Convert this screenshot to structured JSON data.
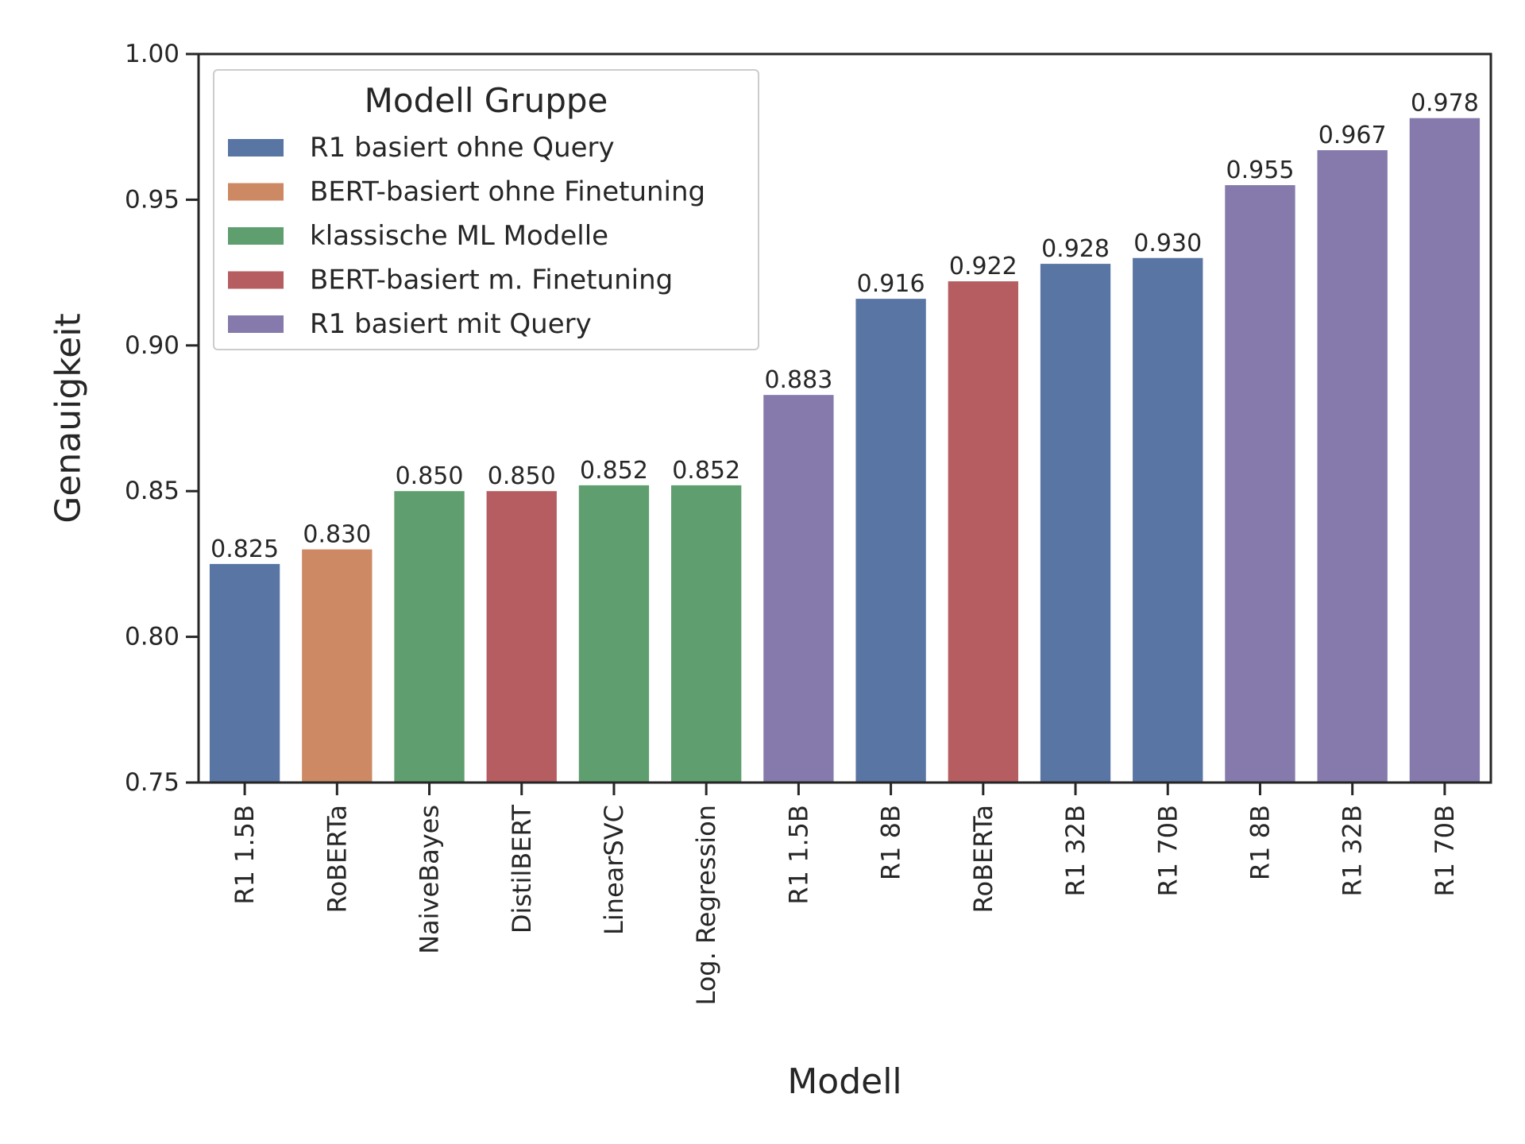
{
  "chart_data": {
    "type": "bar",
    "xlabel": "Modell",
    "ylabel": "Genauigkeit",
    "ylim": [
      0.75,
      1.0
    ],
    "yticks": [
      "0.75",
      "0.80",
      "0.85",
      "0.90",
      "0.95",
      "1.00"
    ],
    "grid": false,
    "legend": {
      "title": "Modell Gruppe",
      "placement": "upper-left",
      "entries": [
        {
          "name": "R1 basiert ohne Query",
          "color": "#5975a4"
        },
        {
          "name": "BERT-basiert ohne Finetuning",
          "color": "#cc8963"
        },
        {
          "name": "klassische ML Modelle",
          "color": "#5f9e6e"
        },
        {
          "name": "BERT-basiert m. Finetuning",
          "color": "#b55d60"
        },
        {
          "name": "R1 basiert mit Query",
          "color": "#857aab"
        }
      ]
    },
    "categories": [
      "R1 1.5B",
      "RoBERTa",
      "NaiveBayes",
      "DistilBERT",
      "LinearSVC",
      "Log. Regression",
      "R1 1.5B",
      "R1 8B",
      "RoBERTa",
      "R1 32B",
      "R1 70B",
      "R1 8B",
      "R1 32B",
      "R1 70B"
    ],
    "values": [
      0.825,
      0.83,
      0.85,
      0.85,
      0.852,
      0.852,
      0.883,
      0.916,
      0.922,
      0.928,
      0.93,
      0.955,
      0.967,
      0.978
    ],
    "value_labels": [
      "0.825",
      "0.830",
      "0.850",
      "0.850",
      "0.852",
      "0.852",
      "0.883",
      "0.916",
      "0.922",
      "0.928",
      "0.930",
      "0.955",
      "0.967",
      "0.978"
    ],
    "groups": [
      0,
      1,
      2,
      3,
      2,
      2,
      4,
      0,
      3,
      0,
      0,
      4,
      4,
      4
    ]
  }
}
